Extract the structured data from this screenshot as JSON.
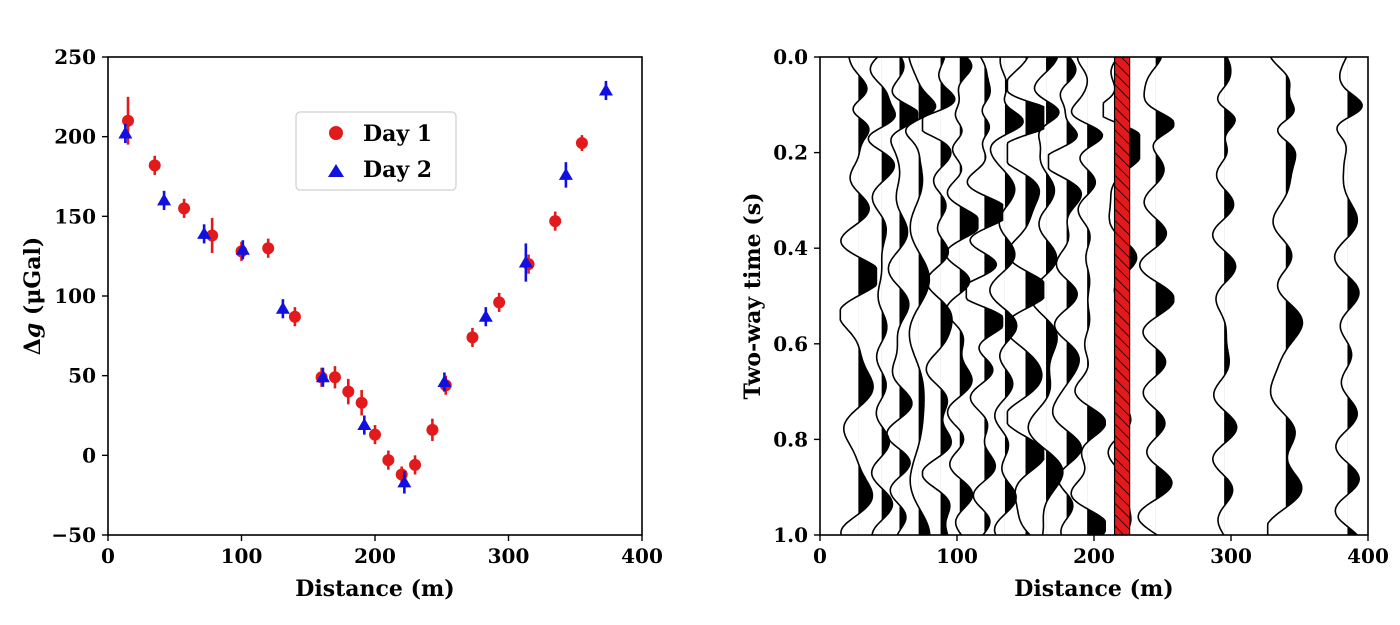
{
  "colors": {
    "day1": "#e31a1c",
    "day2": "#1010e0",
    "well_fill": "#e31a1c",
    "wiggle": "#000000"
  },
  "chart_data": [
    {
      "type": "scatter",
      "xlabel": "Distance (m)",
      "ylabel_prefix": "Δ",
      "ylabel_var": "g",
      "ylabel_unit": "(μGal)",
      "xlim": [
        0,
        400
      ],
      "ylim": [
        -50,
        250
      ],
      "xticks": [
        "0",
        "100",
        "200",
        "300",
        "400"
      ],
      "yticks": [
        "−50",
        "0",
        "50",
        "100",
        "150",
        "200",
        "250"
      ],
      "legend_placement": "upper center",
      "grid": false,
      "series": [
        {
          "name": "Day 1",
          "marker": "circle",
          "x": [
            15,
            35,
            57,
            78,
            100,
            120,
            140,
            160,
            170,
            180,
            190,
            200,
            210,
            220,
            230,
            243,
            253,
            273,
            293,
            315,
            335,
            355
          ],
          "y": [
            210,
            182,
            155,
            138,
            128,
            130,
            87,
            49,
            49,
            40,
            33,
            13,
            -3,
            -12,
            -6,
            16,
            44,
            74,
            96,
            120,
            147,
            196
          ],
          "err": [
            15,
            6,
            6,
            11,
            6,
            6,
            6,
            6,
            7,
            8,
            8,
            6,
            6,
            5,
            6,
            7,
            6,
            6,
            6,
            6,
            6,
            5
          ]
        },
        {
          "name": "Day 2",
          "marker": "triangle",
          "x": [
            13,
            42,
            72,
            101,
            131,
            161,
            192,
            222,
            252,
            283,
            313,
            343,
            373
          ],
          "y": [
            202,
            160,
            139,
            129,
            92,
            49,
            19,
            -17,
            46,
            87,
            121,
            176,
            229
          ],
          "err": [
            6,
            6,
            6,
            6,
            6,
            6,
            6,
            7,
            6,
            6,
            12,
            8,
            6
          ]
        }
      ]
    },
    {
      "type": "wiggle",
      "xlabel": "Distance (m)",
      "ylabel": "Two-way time (s)",
      "xlim": [
        0,
        400
      ],
      "ylim": [
        1.0,
        0.0
      ],
      "xticks": [
        "0",
        "100",
        "200",
        "300",
        "400"
      ],
      "yticks": [
        "0.0",
        "0.2",
        "0.4",
        "0.6",
        "0.8",
        "1.0"
      ],
      "highlight_band": [
        215,
        226
      ],
      "trace_offsets": [
        28,
        45,
        58,
        72,
        88,
        102,
        120,
        135,
        150,
        165,
        180,
        195,
        220,
        245,
        295,
        340,
        385
      ],
      "trace_scale_m": 22
    }
  ]
}
